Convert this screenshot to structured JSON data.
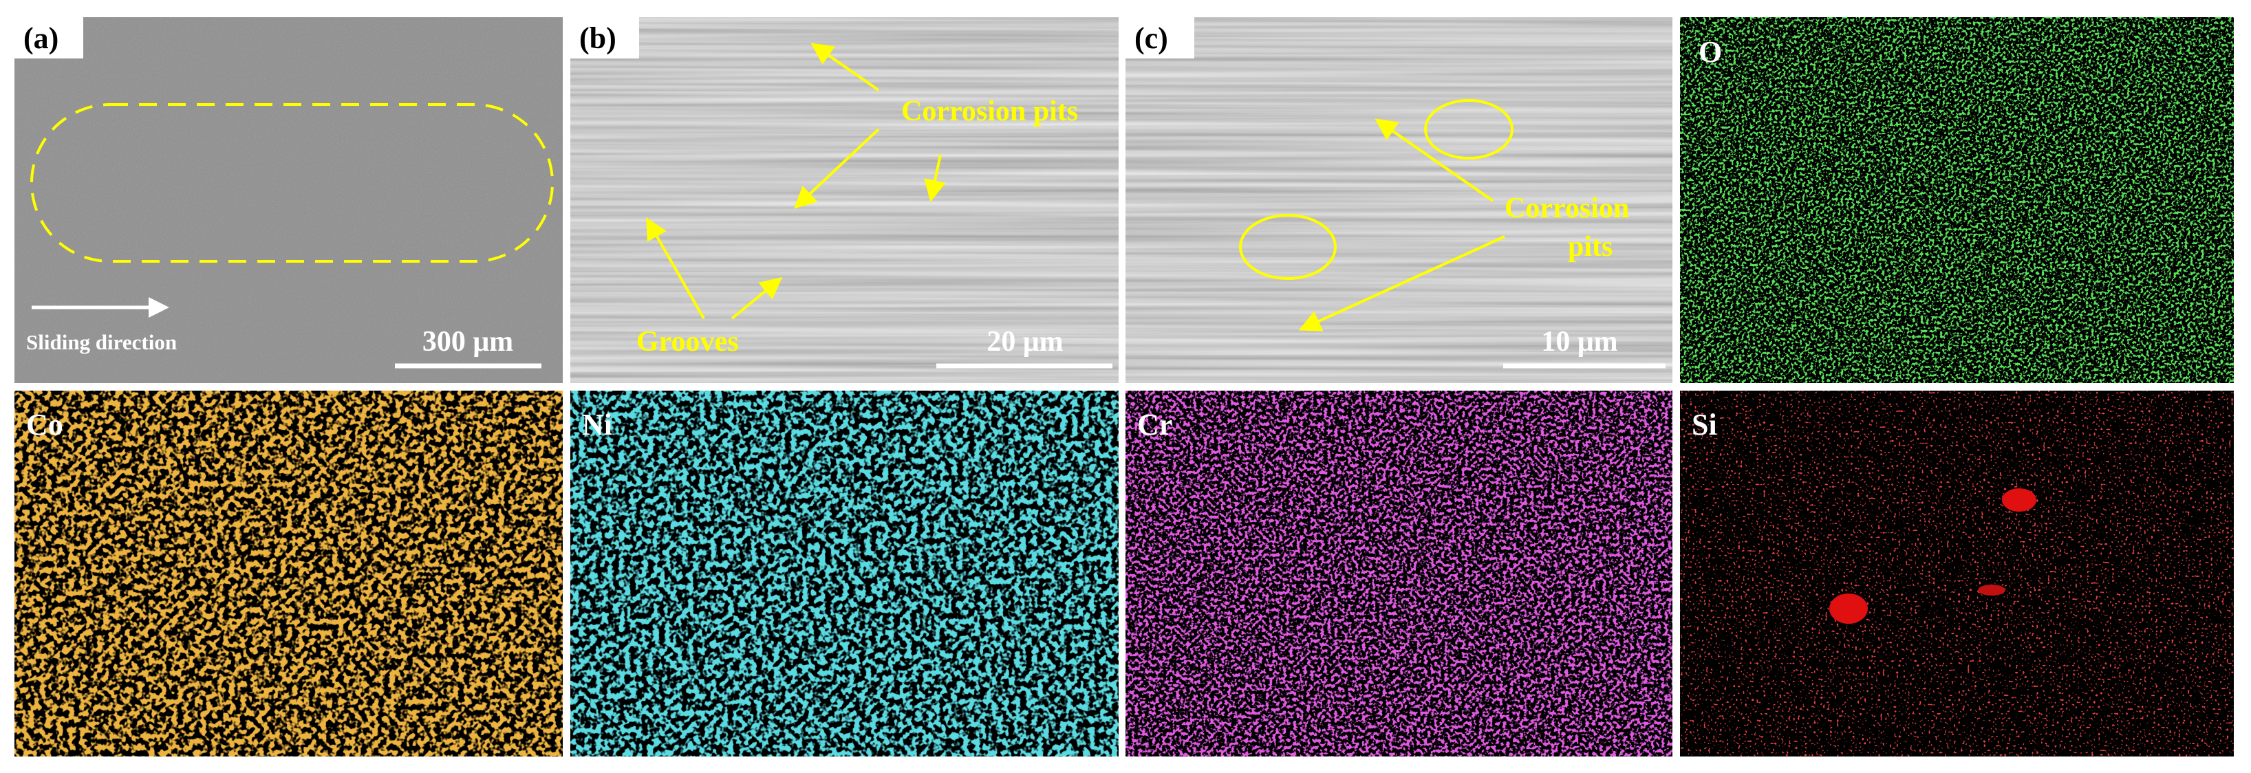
{
  "panels": [
    {
      "label": "(a)",
      "direction": "Sliding direction",
      "scale_bar": "300 μm"
    },
    {
      "label": "(b)",
      "annotations": [
        "Corrosion pits",
        "Grooves"
      ],
      "scale_bar": "20 μm"
    },
    {
      "label": "(c)",
      "annotations": [
        "Corrosion",
        "pits"
      ],
      "scale_bar": "10 μm"
    }
  ],
  "maps": [
    {
      "element": "O"
    },
    {
      "element": "Co"
    },
    {
      "element": "Ni"
    },
    {
      "element": "Cr"
    },
    {
      "element": "Si"
    }
  ]
}
